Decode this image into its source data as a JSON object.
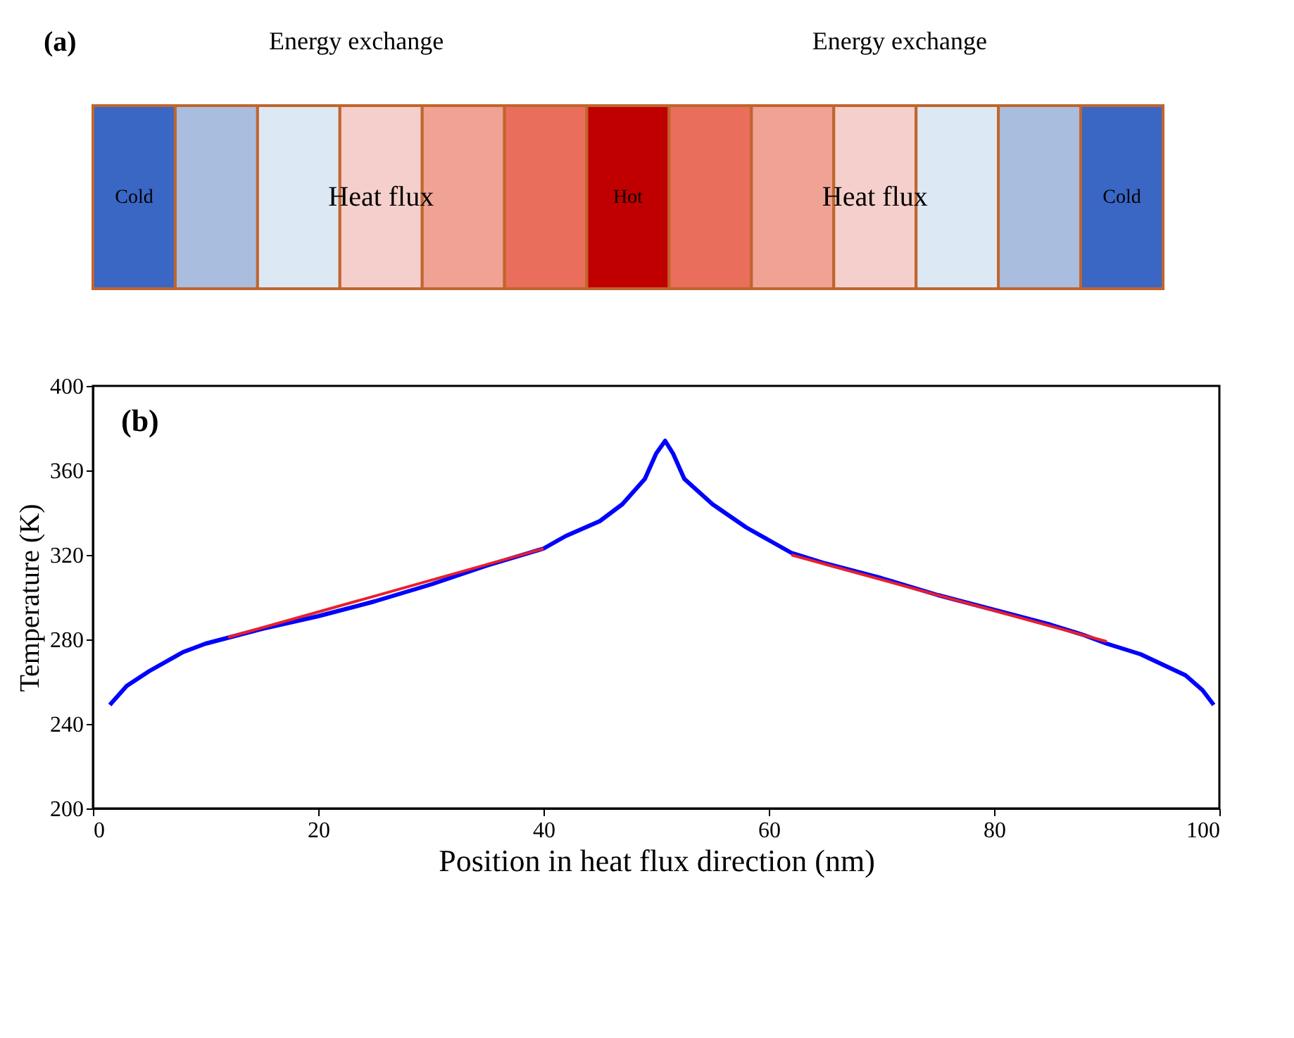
{
  "chart_data": [
    {
      "type": "other",
      "annotations": [
        "(a)",
        "Energy exchange",
        "Energy exchange",
        "Cold",
        "Heat flux",
        "Hot",
        "Heat flux",
        "Cold"
      ],
      "colors": [
        "#3a66c4",
        "#a9bddf",
        "#dde8f5",
        "#f5cfcb",
        "#f0a294",
        "#ea6e5c",
        "#c00000",
        "#ea6e5c",
        "#f0a294",
        "#f5cfcb",
        "#dde8f5",
        "#a9bddf",
        "#3a66c4"
      ]
    },
    {
      "type": "line",
      "xlabel": "Position in heat flux direction (nm)",
      "ylabel": "Temperature (K)",
      "annotations": [
        "(b)"
      ],
      "xlim": [
        0,
        100
      ],
      "xticks": [
        0,
        20,
        40,
        60,
        80,
        100
      ],
      "ylim": [
        200,
        400
      ],
      "yticks": [
        200,
        240,
        280,
        320,
        360,
        400
      ],
      "grid": false,
      "line_style": "solid",
      "marker": "none",
      "series": [
        {
          "color": "#0000ff",
          "x": [
            1.5,
            3,
            5,
            8,
            10,
            15,
            20,
            25,
            30,
            35,
            40,
            42,
            45,
            47,
            49,
            50,
            50.8,
            51.5,
            52.5,
            55,
            58,
            60,
            62,
            65,
            70,
            75,
            80,
            85,
            88,
            90,
            93,
            95,
            97,
            98.5,
            99.5
          ],
          "values": [
            249,
            258,
            265,
            274,
            278,
            285,
            291,
            298,
            306,
            315,
            323,
            329,
            336,
            344,
            356,
            368,
            374,
            368,
            356,
            344,
            333,
            327,
            321,
            316,
            309,
            301,
            294,
            287,
            282,
            278,
            273,
            268,
            263,
            256,
            249
          ]
        },
        {
          "color": "#e8202a",
          "type": "line",
          "x": [
            12,
            40
          ],
          "values": [
            281,
            323
          ]
        },
        {
          "color": "#e8202a",
          "type": "line",
          "x": [
            62,
            90
          ],
          "values": [
            320,
            279
          ]
        }
      ]
    }
  ]
}
